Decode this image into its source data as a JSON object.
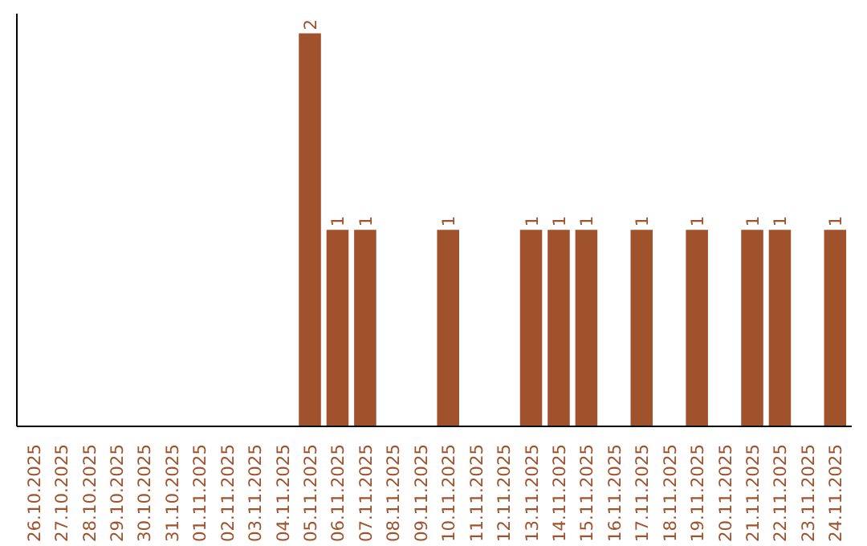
{
  "chart_data": {
    "type": "bar",
    "categories": [
      "26.10.2025",
      "27.10.2025",
      "28.10.2025",
      "29.10.2025",
      "30.10.2025",
      "31.10.2025",
      "01.11.2025",
      "02.11.2025",
      "03.11.2025",
      "04.11.2025",
      "05.11.2025",
      "06.11.2025",
      "07.11.2025",
      "08.11.2025",
      "09.11.2025",
      "10.11.2025",
      "11.11.2025",
      "12.11.2025",
      "13.11.2025",
      "14.11.2025",
      "15.11.2025",
      "16.11.2025",
      "17.11.2025",
      "18.11.2025",
      "19.11.2025",
      "20.11.2025",
      "21.11.2025",
      "22.11.2025",
      "23.11.2025",
      "24.11.2025"
    ],
    "values": [
      0,
      0,
      0,
      0,
      0,
      0,
      0,
      0,
      0,
      0,
      2,
      1,
      1,
      0,
      0,
      1,
      0,
      0,
      1,
      1,
      1,
      0,
      1,
      0,
      1,
      0,
      1,
      1,
      0,
      1
    ],
    "value_labels": [
      null,
      null,
      null,
      null,
      null,
      null,
      null,
      null,
      null,
      null,
      "2",
      "1",
      "1",
      null,
      null,
      "1",
      null,
      null,
      "1",
      "1",
      "1",
      null,
      "1",
      null,
      "1",
      null,
      "1",
      "1",
      null,
      "1"
    ],
    "color": "#a0522d",
    "grid": false,
    "tick_labels": "x"
  }
}
